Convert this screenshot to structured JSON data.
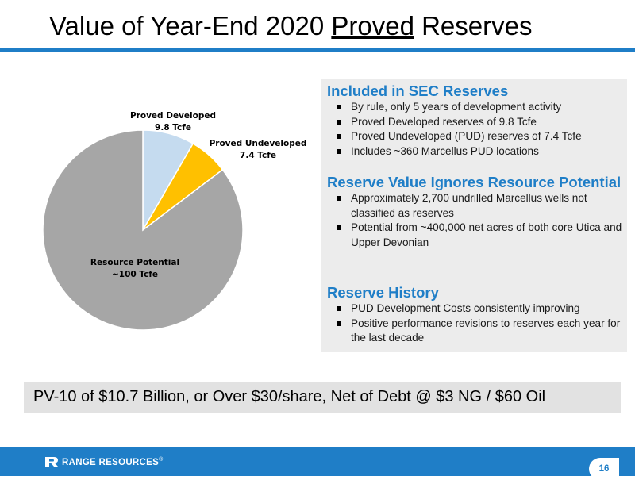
{
  "slide": {
    "title_prefix": "Value of Year-End 2020 ",
    "title_underlined": "Proved",
    "title_suffix": " Reserves",
    "page_number": "16"
  },
  "colors": {
    "accent": "#1f7ec7",
    "panel_bg": "#ececec",
    "pv_bg": "#e2e2e2"
  },
  "chart_data": {
    "type": "pie",
    "unit": "Tcfe",
    "slices": [
      {
        "label": "Proved Developed",
        "value_label": "9.8 Tcfe",
        "value": 9.8,
        "color": "#c5dbef"
      },
      {
        "label": "Proved Undeveloped",
        "value_label": "7.4 Tcfe",
        "value": 7.4,
        "color": "#ffc000"
      },
      {
        "label": "Resource Potential",
        "value_label": "~100 Tcfe",
        "value": 100,
        "color": "#a6a6a6"
      }
    ],
    "start_angle_deg": 0,
    "direction": "clockwise"
  },
  "panel": {
    "sections": [
      {
        "heading": "Included in SEC Reserves",
        "bullets": [
          "By rule, only 5 years of development activity",
          "Proved Developed reserves of 9.8 Tcfe",
          "Proved Undeveloped (PUD) reserves of 7.4 Tcfe",
          "Includes ~360 Marcellus PUD locations"
        ]
      },
      {
        "heading": "Reserve Value Ignores Resource Potential",
        "bullets": [
          "Approximately 2,700 undrilled Marcellus wells not classified as reserves",
          "Potential from ~400,000 net acres of both core Utica and Upper Devonian"
        ]
      },
      {
        "heading": "Reserve History",
        "bullets": [
          "PUD Development Costs consistently improving",
          "Positive performance revisions to reserves each year for the last decade"
        ]
      }
    ]
  },
  "pv10": {
    "text": "PV-10 of $10.7 Billion, or Over $30/share, Net of Debt @ $3 NG / $60 Oil"
  },
  "footer": {
    "logo_text": "RANGE RESOURCES",
    "logo_mark": "®"
  }
}
